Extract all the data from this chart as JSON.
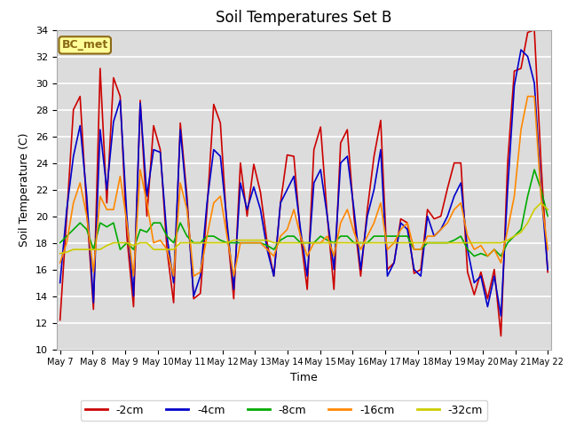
{
  "title": "Soil Temperatures Set B",
  "xlabel": "Time",
  "ylabel": "Soil Temperature (C)",
  "ylim": [
    10,
    34
  ],
  "yticks": [
    10,
    12,
    14,
    16,
    18,
    20,
    22,
    24,
    26,
    28,
    30,
    32,
    34
  ],
  "plot_bg": "#dcdcdc",
  "annotation_text": "BC_met",
  "annotation_bg": "#ffff99",
  "annotation_border": "#8b6914",
  "series": {
    "-2cm": {
      "color": "#cc0000",
      "lw": 1.2
    },
    "-4cm": {
      "color": "#0000cc",
      "lw": 1.2
    },
    "-8cm": {
      "color": "#00aa00",
      "lw": 1.2
    },
    "-16cm": {
      "color": "#ff8800",
      "lw": 1.2
    },
    "-32cm": {
      "color": "#cccc00",
      "lw": 1.2
    }
  },
  "x_labels": [
    "May 7",
    "May 8",
    "May 9",
    "May 10",
    "May 11",
    "May 12",
    "May 13",
    "May 14",
    "May 15",
    "May 16",
    "May 17",
    "May 18",
    "May 19",
    "May 20",
    "May 21",
    "May 22"
  ],
  "data_2cm": [
    12.2,
    20.0,
    28.0,
    29.0,
    20.5,
    13.0,
    31.1,
    21.0,
    30.4,
    29.0,
    18.5,
    13.2,
    28.7,
    20.0,
    26.8,
    25.0,
    17.5,
    13.5,
    27.0,
    21.5,
    13.8,
    14.2,
    20.5,
    28.4,
    27.0,
    19.0,
    13.8,
    24.0,
    20.0,
    23.9,
    21.8,
    18.0,
    15.5,
    21.0,
    24.6,
    24.5,
    18.5,
    14.5,
    25.0,
    26.7,
    20.0,
    14.5,
    25.5,
    26.5,
    19.9,
    15.5,
    20.5,
    24.5,
    27.2,
    16.0,
    16.5,
    19.8,
    19.5,
    15.7,
    16.0,
    20.5,
    19.8,
    20.0,
    22.1,
    24.0,
    24.0,
    15.8,
    14.1,
    15.8,
    13.8,
    16.0,
    11.0,
    24.0,
    30.9,
    31.1,
    33.8,
    34.0,
    24.0,
    15.8
  ],
  "data_4cm": [
    15.0,
    20.5,
    24.5,
    26.8,
    21.5,
    13.5,
    26.5,
    22.0,
    27.1,
    28.7,
    20.0,
    14.0,
    28.5,
    21.5,
    25.0,
    24.8,
    18.5,
    15.0,
    26.5,
    21.0,
    14.0,
    15.5,
    21.0,
    25.0,
    24.5,
    19.5,
    14.5,
    22.5,
    20.5,
    22.2,
    20.5,
    17.5,
    15.5,
    21.0,
    22.0,
    23.0,
    19.0,
    15.5,
    22.5,
    23.5,
    20.0,
    16.0,
    24.0,
    24.5,
    20.5,
    16.0,
    20.0,
    22.0,
    25.0,
    15.5,
    16.5,
    19.5,
    19.0,
    16.0,
    15.5,
    20.0,
    18.5,
    19.0,
    20.0,
    21.5,
    22.5,
    17.5,
    15.0,
    15.5,
    13.2,
    15.5,
    12.5,
    22.0,
    29.8,
    32.5,
    32.0,
    30.0,
    22.0,
    16.0
  ],
  "data_8cm": [
    18.0,
    18.5,
    19.0,
    19.5,
    19.0,
    17.5,
    19.5,
    19.2,
    19.5,
    17.5,
    18.0,
    17.5,
    19.0,
    18.8,
    19.5,
    19.5,
    18.5,
    18.0,
    19.5,
    18.5,
    18.0,
    18.0,
    18.5,
    18.5,
    18.2,
    18.0,
    18.0,
    18.0,
    18.0,
    18.0,
    18.0,
    17.8,
    17.5,
    18.2,
    18.5,
    18.5,
    18.0,
    18.0,
    18.0,
    18.5,
    18.2,
    18.0,
    18.5,
    18.5,
    18.0,
    18.0,
    18.0,
    18.5,
    18.5,
    18.5,
    18.5,
    18.5,
    18.5,
    17.5,
    17.5,
    18.0,
    18.0,
    18.0,
    18.0,
    18.2,
    18.5,
    17.5,
    17.0,
    17.2,
    17.0,
    17.5,
    17.0,
    18.0,
    18.5,
    19.0,
    21.5,
    23.5,
    22.0,
    20.0
  ],
  "data_16cm": [
    16.5,
    18.0,
    21.0,
    22.5,
    20.0,
    15.8,
    21.5,
    20.5,
    20.5,
    23.0,
    19.5,
    15.5,
    23.5,
    21.0,
    18.0,
    18.2,
    17.5,
    15.5,
    22.5,
    20.5,
    15.5,
    15.8,
    18.5,
    21.0,
    21.5,
    18.5,
    15.5,
    18.0,
    18.0,
    18.0,
    18.0,
    17.5,
    17.0,
    18.5,
    19.0,
    20.5,
    18.5,
    17.0,
    18.0,
    18.0,
    18.5,
    17.0,
    19.5,
    20.5,
    18.8,
    17.5,
    18.5,
    19.5,
    21.0,
    17.5,
    18.0,
    19.0,
    19.5,
    17.5,
    17.5,
    18.5,
    18.5,
    19.0,
    19.5,
    20.5,
    21.0,
    18.5,
    17.5,
    17.8,
    17.0,
    17.5,
    16.5,
    19.0,
    21.5,
    26.5,
    29.0,
    29.0,
    21.5,
    17.5
  ],
  "data_32cm": [
    17.2,
    17.3,
    17.5,
    17.5,
    17.5,
    17.5,
    17.5,
    17.8,
    18.0,
    18.0,
    18.0,
    17.8,
    18.0,
    18.0,
    17.5,
    17.5,
    17.5,
    17.5,
    18.0,
    18.0,
    18.0,
    18.0,
    18.0,
    18.0,
    18.0,
    18.0,
    18.2,
    18.2,
    18.2,
    18.2,
    18.2,
    18.2,
    18.0,
    18.0,
    18.0,
    18.0,
    18.0,
    18.0,
    18.0,
    18.0,
    18.0,
    18.0,
    18.0,
    18.0,
    18.0,
    18.0,
    18.0,
    18.0,
    18.0,
    18.0,
    18.0,
    18.0,
    18.0,
    18.0,
    18.0,
    18.0,
    18.0,
    18.0,
    18.0,
    18.0,
    18.0,
    18.0,
    18.0,
    18.0,
    18.0,
    18.0,
    18.0,
    18.2,
    18.5,
    18.8,
    19.5,
    20.5,
    21.0,
    20.5
  ]
}
